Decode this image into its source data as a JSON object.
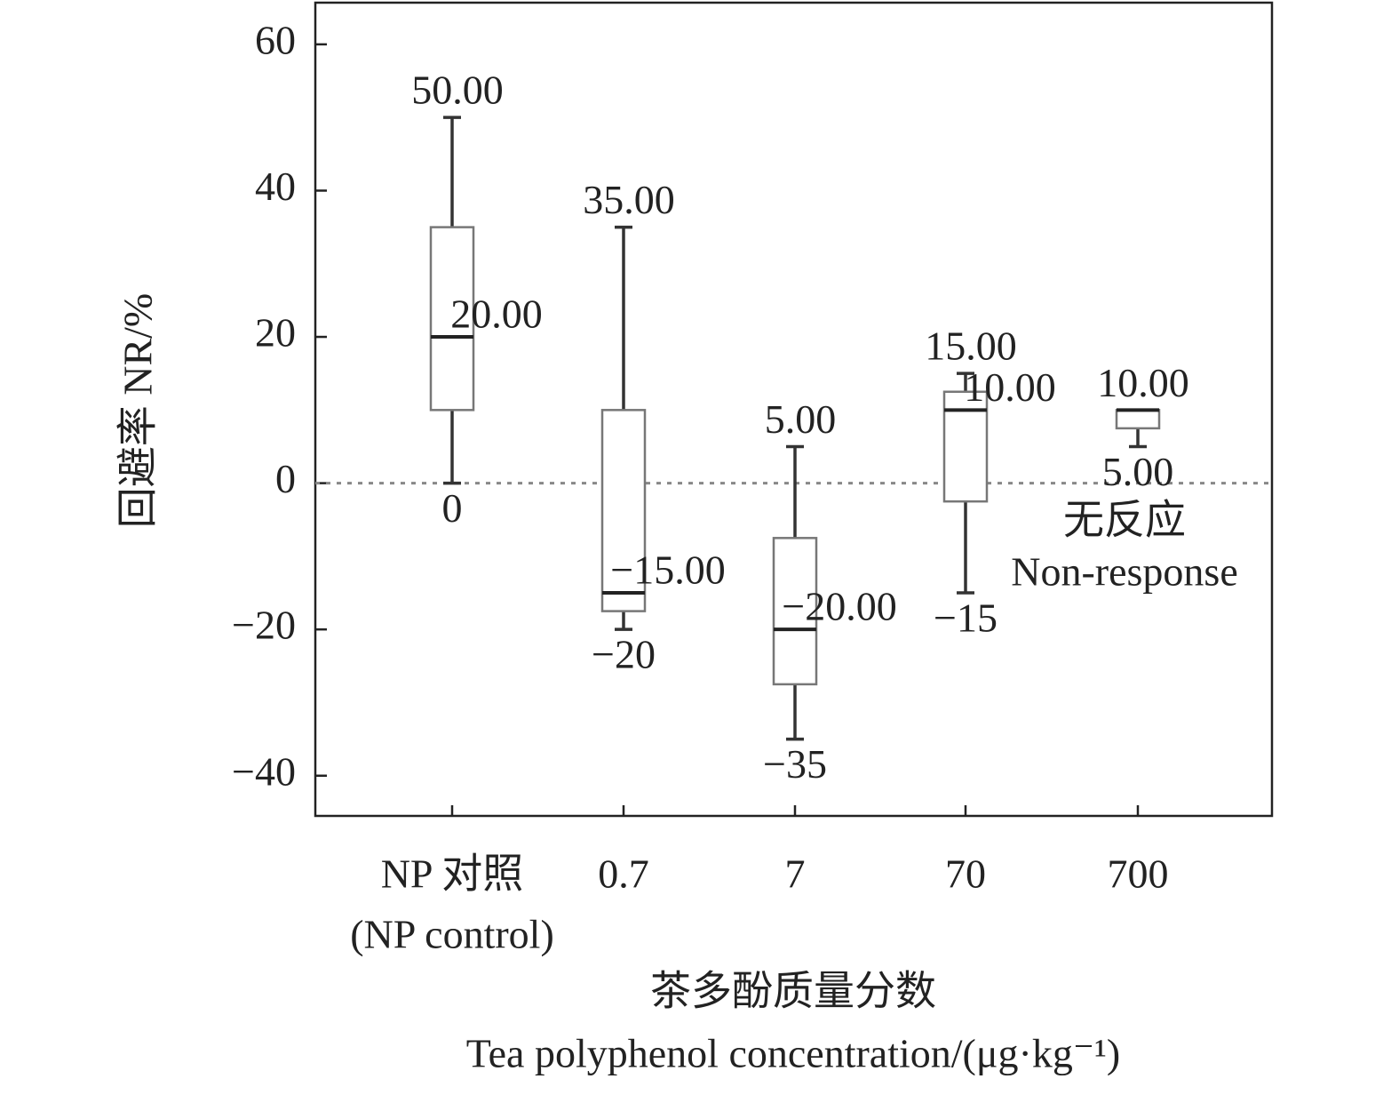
{
  "chart_data": {
    "type": "box",
    "ylabel": "回避率 NR/%",
    "xlabel": [
      "茶多酚质量分数",
      "Tea polyphenol concentration/(μg·kg⁻¹)"
    ],
    "categories": [
      [
        "NP 对照",
        "(NP control)"
      ],
      [
        "0.7"
      ],
      [
        "7"
      ],
      [
        "70"
      ],
      [
        "700"
      ]
    ],
    "boxes": [
      {
        "min": 0,
        "q1": 10,
        "median": 20,
        "q3": 35,
        "max": 50,
        "value_labels": {
          "max": "50.00",
          "median": "20.00",
          "min": "0"
        }
      },
      {
        "min": -20,
        "q1": -17.5,
        "median": -15,
        "q3": 10,
        "max": 35,
        "value_labels": {
          "max": "35.00",
          "median": "−15.00",
          "min": "−20"
        }
      },
      {
        "min": -35,
        "q1": -27.5,
        "median": -20,
        "q3": -7.5,
        "max": 5,
        "value_labels": {
          "max": "5.00",
          "median": "−20.00",
          "min": "−35"
        }
      },
      {
        "min": -15,
        "q1": -2.5,
        "median": 10,
        "q3": 12.5,
        "max": 15,
        "value_labels": {
          "max": "15.00",
          "median": "10.00",
          "min": "−15"
        }
      },
      {
        "min": 5,
        "q1": 7.5,
        "median": 10,
        "q3": 10,
        "max": 10,
        "value_labels": {
          "max": "10.00",
          "min": "5.00"
        }
      }
    ],
    "annotation": [
      "无反应",
      "Non-response"
    ],
    "reference_line": 0,
    "ylim": [
      -45.5,
      65.7
    ],
    "yticks": [
      {
        "value": -40,
        "label": "−40"
      },
      {
        "value": -20,
        "label": "−20"
      },
      0,
      20,
      40,
      60
    ]
  }
}
